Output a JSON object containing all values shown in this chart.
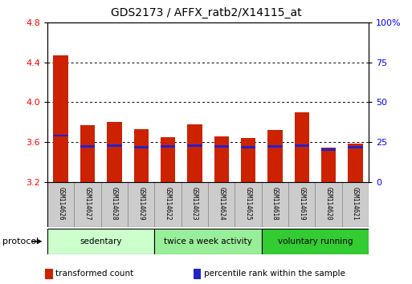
{
  "title": "GDS2173 / AFFX_ratb2/X14115_at",
  "samples": [
    "GSM114626",
    "GSM114627",
    "GSM114628",
    "GSM114629",
    "GSM114622",
    "GSM114623",
    "GSM114624",
    "GSM114625",
    "GSM114618",
    "GSM114619",
    "GSM114620",
    "GSM114621"
  ],
  "transformed_count": [
    4.47,
    3.77,
    3.8,
    3.73,
    3.65,
    3.78,
    3.66,
    3.64,
    3.72,
    3.9,
    3.54,
    3.58
  ],
  "bar_bottom": 3.2,
  "percentile_marker": [
    3.665,
    3.558,
    3.563,
    3.548,
    3.555,
    3.563,
    3.555,
    3.548,
    3.555,
    3.563,
    3.522,
    3.548
  ],
  "bar_color": "#cc2200",
  "percentile_color": "#2222cc",
  "ylim_left": [
    3.2,
    4.8
  ],
  "ylim_right": [
    0,
    100
  ],
  "yticks_left": [
    3.2,
    3.6,
    4.0,
    4.4,
    4.8
  ],
  "yticks_right": [
    0,
    25,
    50,
    75,
    100
  ],
  "ytick_labels_right": [
    "0",
    "25",
    "50",
    "75",
    "100%"
  ],
  "grid_lines": [
    3.6,
    4.0,
    4.4
  ],
  "protocols": [
    {
      "label": "sedentary",
      "start": 0,
      "end": 4,
      "color": "#ccffcc"
    },
    {
      "label": "twice a week activity",
      "start": 4,
      "end": 8,
      "color": "#99ee99"
    },
    {
      "label": "voluntary running",
      "start": 8,
      "end": 12,
      "color": "#33cc33"
    }
  ],
  "protocol_label": "protocol",
  "legend_items": [
    {
      "label": "transformed count",
      "color": "#cc2200"
    },
    {
      "label": "percentile rank within the sample",
      "color": "#2222cc"
    }
  ],
  "bar_width": 0.55,
  "background_color": "#ffffff",
  "plot_bg_color": "#ffffff",
  "sample_label_bg": "#cccccc"
}
